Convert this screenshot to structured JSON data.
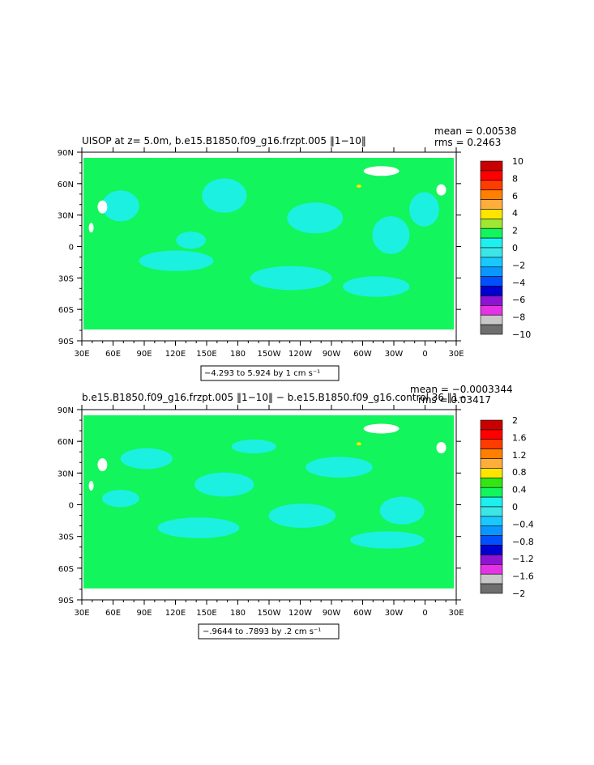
{
  "colors": {
    "ocean_bg": "#12f55c",
    "cyan": "#1ef0f0",
    "light_cyan": "#3ce6e6",
    "land": "#ffffff",
    "yellow": "#ffe400"
  },
  "chart_data": [
    {
      "type": "heatmap",
      "title": "UISOP at z=    5.0m, b.e15.B1850.f09_g16.frzpt.005 ‖1−10‖",
      "stats": [
        "mean = 0.00538",
        "rms = 0.2463"
      ],
      "x_ticks": [
        "30E",
        "60E",
        "90E",
        "120E",
        "150E",
        "180",
        "150W",
        "120W",
        "90W",
        "60W",
        "30W",
        "0",
        "30E"
      ],
      "y_ticks": [
        "90N",
        "60N",
        "30N",
        "0",
        "30S",
        "60S",
        "90S"
      ],
      "xlim": [
        30,
        390
      ],
      "ylim": [
        -90,
        90
      ],
      "contour_info": "−4.293 to 5.924 by 1 cm s⁻¹",
      "colorbar": {
        "labels": [
          "10",
          "8",
          "6",
          "4",
          "2",
          "0",
          "−2",
          "−4",
          "−6",
          "−8",
          "−10"
        ],
        "colors": [
          "#c80000",
          "#ff0000",
          "#ff3c00",
          "#ff8000",
          "#ffae3c",
          "#ffe400",
          "#a0e632",
          "#12f55c",
          "#1ef0f0",
          "#3ce6e6",
          "#19c8ff",
          "#0a96ff",
          "#0050ff",
          "#0000d2",
          "#8c14d2",
          "#e632e6",
          "#c8c8c8",
          "#6e6e6e"
        ]
      }
    },
    {
      "type": "heatmap",
      "title": "b.e15.B1850.f09_g16.frzpt.005 ‖1−10‖ − b.e15.B1850.f09_g16.control.36 ‖1−",
      "stats": [
        "mean = −0.0003344",
        "rms = 0.03417"
      ],
      "x_ticks": [
        "30E",
        "60E",
        "90E",
        "120E",
        "150E",
        "180",
        "150W",
        "120W",
        "90W",
        "60W",
        "30W",
        "0",
        "30E"
      ],
      "y_ticks": [
        "90N",
        "60N",
        "30N",
        "0",
        "30S",
        "60S",
        "90S"
      ],
      "xlim": [
        30,
        390
      ],
      "ylim": [
        -90,
        90
      ],
      "contour_info": "−.9644 to .7893 by .2 cm s⁻¹",
      "colorbar": {
        "labels": [
          "2",
          "1.6",
          "1.2",
          "0.8",
          "0.4",
          "0",
          "−0.4",
          "−0.8",
          "−1.2",
          "−1.6",
          "−2"
        ],
        "colors": [
          "#c80000",
          "#ff0000",
          "#ff3c00",
          "#ff8000",
          "#ffae3c",
          "#ffe400",
          "#32e614",
          "#12f55c",
          "#1ef0f0",
          "#3ce6e6",
          "#19c8ff",
          "#0a96ff",
          "#0050ff",
          "#0000d2",
          "#8c14d2",
          "#e632e6",
          "#c8c8c8",
          "#6e6e6e"
        ]
      }
    }
  ]
}
